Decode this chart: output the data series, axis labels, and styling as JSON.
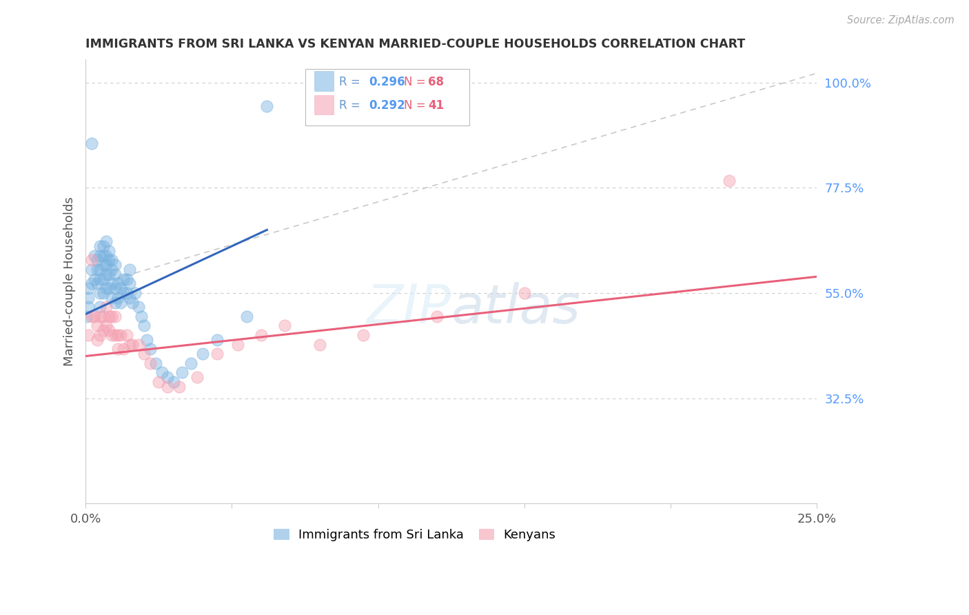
{
  "title": "IMMIGRANTS FROM SRI LANKA VS KENYAN MARRIED-COUPLE HOUSEHOLDS CORRELATION CHART",
  "source": "Source: ZipAtlas.com",
  "ylabel": "Married-couple Households",
  "xlim": [
    0.0,
    0.25
  ],
  "ylim": [
    0.1,
    1.05
  ],
  "xticks": [
    0.0,
    0.05,
    0.1,
    0.15,
    0.2,
    0.25
  ],
  "xticklabels": [
    "0.0%",
    "",
    "",
    "",
    "",
    "25.0%"
  ],
  "yticks_right": [
    0.325,
    0.55,
    0.775,
    1.0
  ],
  "ytick_labels_right": [
    "32.5%",
    "55.0%",
    "77.5%",
    "100.0%"
  ],
  "color_blue": "#7BB3E0",
  "color_pink": "#F4A0B0",
  "color_blue_line": "#3366BB",
  "color_pink_line": "#E8607A",
  "color_label_right": "#5599FF",
  "color_title": "#333333",
  "color_source": "#AAAAAA",
  "color_grid": "#CCCCCC",
  "legend_label1": "Immigrants from Sri Lanka",
  "legend_label2": "Kenyans",
  "sri_lanka_x": [
    0.0005,
    0.001,
    0.001,
    0.001,
    0.002,
    0.002,
    0.002,
    0.003,
    0.003,
    0.004,
    0.004,
    0.004,
    0.005,
    0.005,
    0.005,
    0.005,
    0.005,
    0.005,
    0.006,
    0.006,
    0.006,
    0.006,
    0.006,
    0.007,
    0.007,
    0.007,
    0.007,
    0.007,
    0.008,
    0.008,
    0.008,
    0.008,
    0.009,
    0.009,
    0.009,
    0.009,
    0.01,
    0.01,
    0.01,
    0.01,
    0.011,
    0.011,
    0.012,
    0.012,
    0.013,
    0.013,
    0.014,
    0.014,
    0.015,
    0.015,
    0.015,
    0.016,
    0.017,
    0.018,
    0.019,
    0.02,
    0.021,
    0.022,
    0.024,
    0.026,
    0.028,
    0.03,
    0.033,
    0.036,
    0.04,
    0.045,
    0.055,
    0.062
  ],
  "sri_lanka_y": [
    0.5,
    0.52,
    0.56,
    0.54,
    0.87,
    0.6,
    0.57,
    0.63,
    0.58,
    0.62,
    0.6,
    0.57,
    0.65,
    0.63,
    0.6,
    0.58,
    0.55,
    0.52,
    0.65,
    0.63,
    0.61,
    0.58,
    0.55,
    0.66,
    0.63,
    0.61,
    0.59,
    0.56,
    0.64,
    0.62,
    0.59,
    0.56,
    0.62,
    0.6,
    0.57,
    0.54,
    0.61,
    0.59,
    0.56,
    0.53,
    0.57,
    0.54,
    0.56,
    0.53,
    0.58,
    0.55,
    0.58,
    0.55,
    0.6,
    0.57,
    0.54,
    0.53,
    0.55,
    0.52,
    0.5,
    0.48,
    0.45,
    0.43,
    0.4,
    0.38,
    0.37,
    0.36,
    0.38,
    0.4,
    0.42,
    0.45,
    0.5,
    0.95
  ],
  "sri_lanka_line_x": [
    0.0,
    0.062
  ],
  "sri_lanka_line_y": [
    0.505,
    0.685
  ],
  "kenya_x": [
    0.001,
    0.002,
    0.002,
    0.003,
    0.004,
    0.004,
    0.005,
    0.005,
    0.006,
    0.006,
    0.007,
    0.007,
    0.008,
    0.008,
    0.009,
    0.009,
    0.01,
    0.01,
    0.011,
    0.011,
    0.012,
    0.013,
    0.014,
    0.015,
    0.016,
    0.018,
    0.02,
    0.022,
    0.025,
    0.028,
    0.032,
    0.038,
    0.045,
    0.052,
    0.06,
    0.068,
    0.08,
    0.095,
    0.12,
    0.15,
    0.22
  ],
  "kenya_y": [
    0.46,
    0.62,
    0.5,
    0.5,
    0.48,
    0.45,
    0.5,
    0.46,
    0.5,
    0.47,
    0.52,
    0.48,
    0.5,
    0.47,
    0.5,
    0.46,
    0.5,
    0.46,
    0.46,
    0.43,
    0.46,
    0.43,
    0.46,
    0.44,
    0.44,
    0.44,
    0.42,
    0.4,
    0.36,
    0.35,
    0.35,
    0.37,
    0.42,
    0.44,
    0.46,
    0.48,
    0.44,
    0.46,
    0.5,
    0.55,
    0.79
  ],
  "kenya_line_x": [
    0.0,
    0.25
  ],
  "kenya_line_y": [
    0.415,
    0.585
  ],
  "dash_line_x": [
    0.01,
    0.25
  ],
  "dash_line_y": [
    0.58,
    1.02
  ]
}
